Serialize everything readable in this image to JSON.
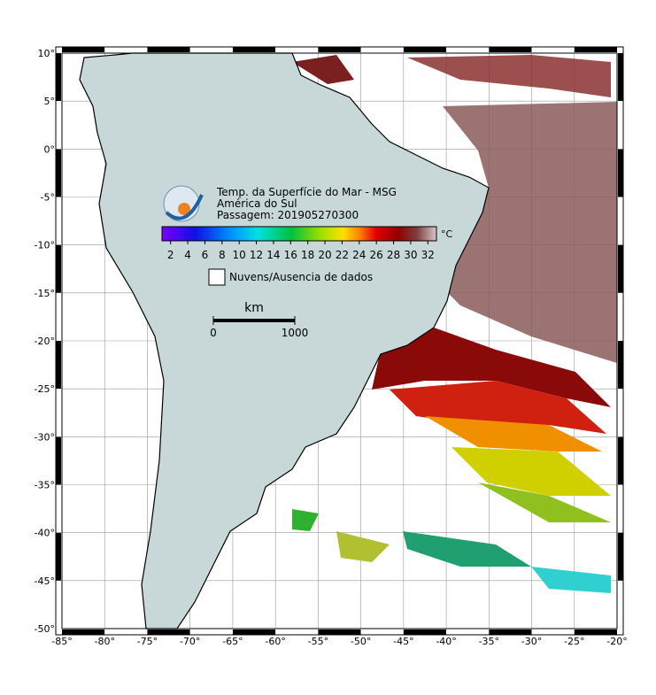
{
  "map": {
    "title_lines": [
      "Temp. da Superfície do Mar - MSG",
      "América do Sul",
      "Passagem: 201905270300"
    ],
    "colorbar": {
      "unit": "°C",
      "clim": [
        1,
        33
      ],
      "ticks": [
        2,
        4,
        6,
        8,
        10,
        12,
        14,
        16,
        18,
        20,
        22,
        24,
        26,
        28,
        30,
        32
      ]
    },
    "legend": {
      "no_data": "Nuvens/Ausencia de dados"
    },
    "scale_bar": {
      "unit": "km",
      "ticks": [
        0,
        1000
      ]
    },
    "axes": {
      "xlim": [
        -85,
        -20
      ],
      "ylim": [
        -50,
        10
      ],
      "xticks": [
        {
          "value": -85,
          "label": "-85°"
        },
        {
          "value": -80,
          "label": "-80°"
        },
        {
          "value": -75,
          "label": "-75°"
        },
        {
          "value": -70,
          "label": "-70°"
        },
        {
          "value": -65,
          "label": "-65°"
        },
        {
          "value": -60,
          "label": "-60°"
        },
        {
          "value": -55,
          "label": "-55°"
        },
        {
          "value": -50,
          "label": "-50°"
        },
        {
          "value": -45,
          "label": "-45°"
        },
        {
          "value": -40,
          "label": "-40°"
        },
        {
          "value": -35,
          "label": "-35°"
        },
        {
          "value": -30,
          "label": "-30°"
        },
        {
          "value": -25,
          "label": "-25°"
        },
        {
          "value": -20,
          "label": "-20°"
        }
      ],
      "yticks": [
        {
          "value": 10,
          "label": "10°"
        },
        {
          "value": 5,
          "label": "5°"
        },
        {
          "value": 0,
          "label": "0°"
        },
        {
          "value": -5,
          "label": "-5°"
        },
        {
          "value": -10,
          "label": "-10°"
        },
        {
          "value": -15,
          "label": "-15°"
        },
        {
          "value": -20,
          "label": "-20°"
        },
        {
          "value": -25,
          "label": "-25°"
        },
        {
          "value": -30,
          "label": "-30°"
        },
        {
          "value": -35,
          "label": "-35°"
        },
        {
          "value": -40,
          "label": "-40°"
        },
        {
          "value": -45,
          "label": "-45°"
        },
        {
          "value": -50,
          "label": "-50°"
        }
      ]
    }
  }
}
